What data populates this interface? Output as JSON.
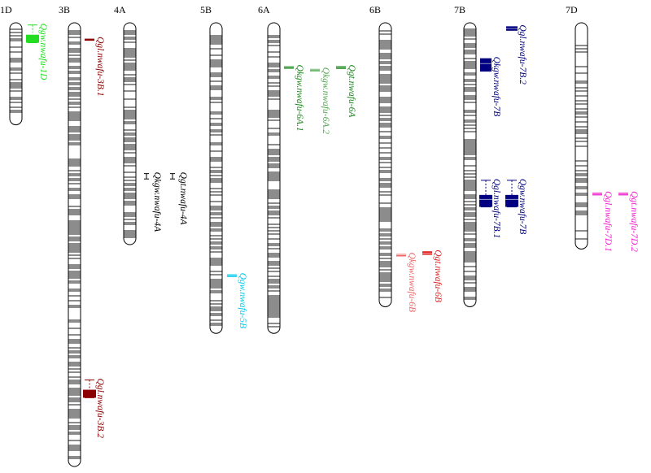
{
  "chromosomes": [
    {
      "id": "1D",
      "label": "1D",
      "length": 0.23,
      "density": 0.45,
      "seed": 3
    },
    {
      "id": "3B",
      "label": "3B",
      "length": 1.0,
      "density": 0.5,
      "seed": 7
    },
    {
      "id": "4A",
      "label": "4A",
      "length": 0.5,
      "density": 0.6,
      "seed": 11
    },
    {
      "id": "5B",
      "label": "5B",
      "length": 0.7,
      "density": 0.45,
      "seed": 19
    },
    {
      "id": "6A",
      "label": "6A",
      "length": 0.7,
      "density": 0.55,
      "seed": 23
    },
    {
      "id": "6B",
      "label": "6B",
      "length": 0.64,
      "density": 0.62,
      "seed": 29
    },
    {
      "id": "7B",
      "label": "7B",
      "length": 0.64,
      "density": 0.65,
      "seed": 31
    },
    {
      "id": "7D",
      "label": "7D",
      "length": 0.51,
      "density": 0.4,
      "seed": 37
    }
  ],
  "qtls": [
    {
      "name": "Qgw.nwafu-1D",
      "chromosome": "1D",
      "color": "#22dd22",
      "interval": [
        0.005,
        0.045
      ],
      "peak": 0.022,
      "lane": 1,
      "size": "large"
    },
    {
      "name": "Qgl.nwafu-3B.1",
      "chromosome": "3B",
      "color": "#8b0000",
      "interval": [
        0.035,
        0.037
      ],
      "peak": 0.036,
      "lane": 1,
      "size": "small"
    },
    {
      "name": "Qgl.nwafu-3B.2",
      "chromosome": "3B",
      "color": "#8b0000",
      "interval": [
        0.805,
        0.845
      ],
      "peak": 0.825,
      "lane": 1,
      "size": "large"
    },
    {
      "name": "Qkgw.nwafu-4A",
      "chromosome": "4A",
      "color": "#000000",
      "interval": [
        0.34,
        0.352
      ],
      "peak": 0.346,
      "lane": 1,
      "size": "tiny"
    },
    {
      "name": "Qgt.nwafu-4A",
      "chromosome": "4A",
      "color": "#000000",
      "interval": [
        0.34,
        0.352
      ],
      "peak": 0.346,
      "lane": 2,
      "size": "tiny"
    },
    {
      "name": "Qgw.nwafu-5B",
      "chromosome": "5B",
      "color": "#00ccee",
      "interval": [
        0.567,
        0.573
      ],
      "peak": 0.57,
      "lane": 1,
      "size": "small"
    },
    {
      "name": "Qkgw.nwafu-6A.1",
      "chromosome": "6A",
      "color": "#1a8a1a",
      "interval": [
        0.098,
        0.102
      ],
      "peak": 0.1,
      "lane": 1,
      "size": "small"
    },
    {
      "name": "Qkgw.nwafu-6A.2",
      "chromosome": "6A",
      "color": "#55aa55",
      "interval": [
        0.104,
        0.108
      ],
      "peak": 0.106,
      "lane": 2,
      "size": "small"
    },
    {
      "name": "Qgt.nwafu-6A",
      "chromosome": "6A",
      "color": "#1a8a1a",
      "interval": [
        0.098,
        0.104
      ],
      "peak": 0.101,
      "lane": 3,
      "size": "small"
    },
    {
      "name": "Qkgw.nwafu-6B",
      "chromosome": "6B",
      "color": "#ee6666",
      "interval": [
        0.521,
        0.525
      ],
      "peak": 0.523,
      "lane": 1,
      "size": "small"
    },
    {
      "name": "Qgt.nwafu-6B",
      "chromosome": "6B",
      "color": "#dd2222",
      "interval": [
        0.515,
        0.523
      ],
      "peak": 0.519,
      "lane": 2,
      "size": "small"
    },
    {
      "name": "Qkgw.nwafu-7B",
      "chromosome": "7B",
      "color": "#000080",
      "interval": [
        0.08,
        0.11
      ],
      "peak": 0.092,
      "lane": 1,
      "size": "medium"
    },
    {
      "name": "Qgl.nwafu-7B.2",
      "chromosome": "7B",
      "color": "#000080",
      "interval": [
        0.008,
        0.018
      ],
      "peak": 0.013,
      "lane": 2,
      "size": "medium"
    },
    {
      "name": "Qgl.nwafu-7B.1",
      "chromosome": "7B",
      "color": "#000080",
      "interval": [
        0.355,
        0.415
      ],
      "peak": 0.398,
      "lane": 1,
      "size": "large"
    },
    {
      "name": "Qgw.nwafu-7B",
      "chromosome": "7B",
      "color": "#000080",
      "interval": [
        0.355,
        0.415
      ],
      "peak": 0.398,
      "lane": 2,
      "size": "large"
    },
    {
      "name": "Qgl.nwafu-7D.1",
      "chromosome": "7D",
      "color": "#ee22cc",
      "interval": [
        0.383,
        0.389
      ],
      "peak": 0.386,
      "lane": 1,
      "size": "small"
    },
    {
      "name": "Qgt.nwafu-7D.2",
      "chromosome": "7D",
      "color": "#ee22cc",
      "interval": [
        0.383,
        0.389
      ],
      "peak": 0.386,
      "lane": 2,
      "size": "small"
    }
  ]
}
